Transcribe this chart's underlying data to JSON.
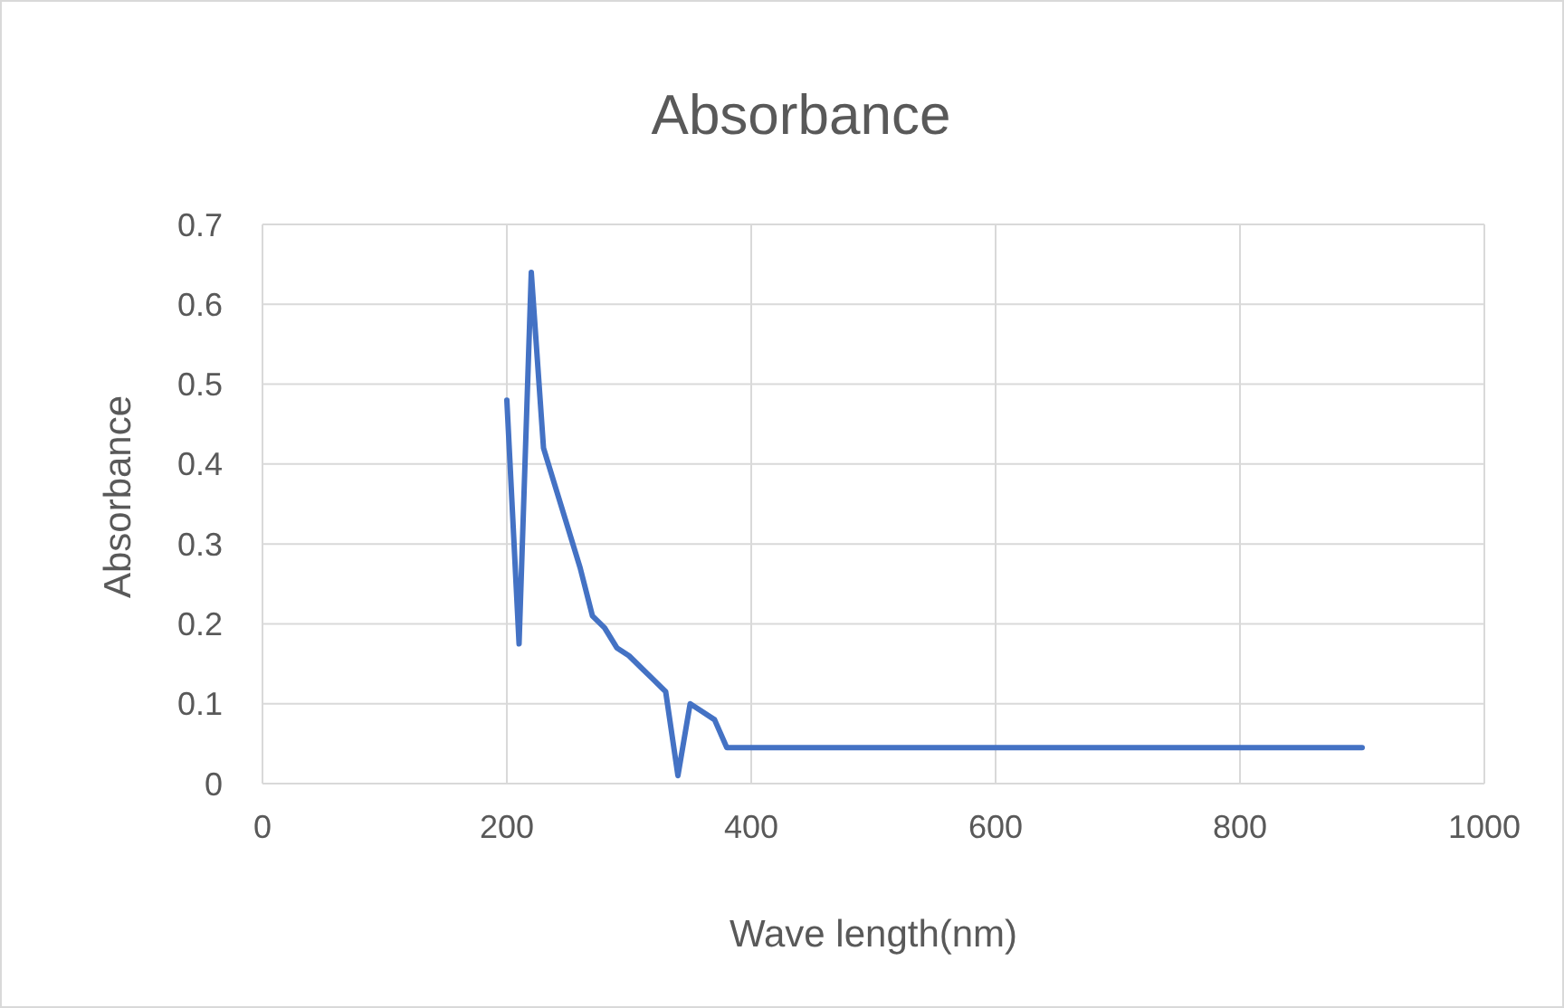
{
  "chart_data": {
    "type": "line",
    "title": "Absorbance",
    "xlabel": "Wave length(nm)",
    "ylabel": "Absorbance",
    "x": [
      200,
      210,
      220,
      230,
      240,
      250,
      260,
      270,
      280,
      290,
      300,
      310,
      320,
      330,
      340,
      350,
      360,
      370,
      380,
      900
    ],
    "series": [
      {
        "color": "#4472c4",
        "values": [
          0.48,
          0.175,
          0.64,
          0.42,
          0.37,
          0.32,
          0.27,
          0.21,
          0.195,
          0.17,
          0.16,
          0.145,
          0.13,
          0.115,
          0.01,
          0.1,
          0.09,
          0.08,
          0.045,
          0.045
        ]
      }
    ],
    "xlim": [
      0,
      1000
    ],
    "xticks": [
      0,
      200,
      400,
      600,
      800,
      1000
    ],
    "ylim": [
      0,
      0.7
    ],
    "yticks": [
      0,
      0.1,
      0.2,
      0.3,
      0.4,
      0.5,
      0.6,
      0.7
    ],
    "grid": true,
    "marker": "none",
    "line_style": "solid"
  }
}
